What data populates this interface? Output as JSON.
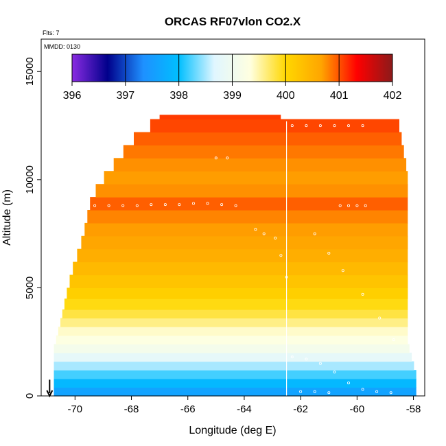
{
  "chart_data": {
    "type": "heatmap",
    "title": "ORCAS RF07vlon CO2.X",
    "xlabel": "Longitude (deg E)",
    "ylabel": "Altitude (m)",
    "xlim": [
      -71.2,
      -57.6
    ],
    "ylim": [
      0,
      16500
    ],
    "x_ticks": [
      -70,
      -68,
      -66,
      -64,
      -62,
      -60,
      -58
    ],
    "y_ticks": [
      0,
      5000,
      10000,
      15000
    ],
    "annotations": {
      "flights": "Flts: 7",
      "mmdd": "MMDD: 0130"
    },
    "colorbar": {
      "min": 396,
      "max": 402,
      "ticks": [
        396,
        397,
        398,
        399,
        400,
        401,
        402
      ],
      "colors": [
        "#8a2be2",
        "#00008b",
        "#1e90ff",
        "#00bfff",
        "#e0f6ff",
        "#ffffe0",
        "#ffd700",
        "#ffa500",
        "#ff0000",
        "#8b1a1a"
      ]
    },
    "envelope_left": [
      [
        -70.75,
        0
      ],
      [
        -70.75,
        2200
      ],
      [
        -70.5,
        3500
      ],
      [
        -70.3,
        4700
      ],
      [
        -70.1,
        5800
      ],
      [
        -69.8,
        7000
      ],
      [
        -69.6,
        8000
      ],
      [
        -69.5,
        8800
      ],
      [
        -69.2,
        9700
      ],
      [
        -68.8,
        10400
      ],
      [
        -68.4,
        11100
      ],
      [
        -68.0,
        11800
      ],
      [
        -67.5,
        12400
      ],
      [
        -67.0,
        12700
      ]
    ],
    "top_edge": [
      [
        -67.0,
        12700
      ],
      [
        -62.7,
        12700
      ],
      [
        -62.7,
        12500
      ],
      [
        -58.5,
        12500
      ]
    ],
    "envelope_right": [
      [
        -58.5,
        12500
      ],
      [
        -58.2,
        10300
      ],
      [
        -58.2,
        2500
      ],
      [
        -57.9,
        1000
      ],
      [
        -57.9,
        0
      ]
    ],
    "vertical_profile_a": {
      "lon": -70.9,
      "alt_top": 750,
      "alt_bottom": 0
    },
    "vertical_profile_b": {
      "lon": -62.5,
      "alt_top": 12700,
      "alt_bottom": 0
    },
    "layers": [
      {
        "alt": [
          0,
          400
        ],
        "co2": 397.6
      },
      {
        "alt": [
          400,
          800
        ],
        "co2": 397.9
      },
      {
        "alt": [
          800,
          1200
        ],
        "co2": 398.2
      },
      {
        "alt": [
          1200,
          1600
        ],
        "co2": 398.5
      },
      {
        "alt": [
          1600,
          2000
        ],
        "co2": 398.8
      },
      {
        "alt": [
          2000,
          2400
        ],
        "co2": 399.1
      },
      {
        "alt": [
          2400,
          2800
        ],
        "co2": 399.3
      },
      {
        "alt": [
          2800,
          3200
        ],
        "co2": 399.4
      },
      {
        "alt": [
          3200,
          3600
        ],
        "co2": 399.6
      },
      {
        "alt": [
          3600,
          4000
        ],
        "co2": 399.8
      },
      {
        "alt": [
          4000,
          4500
        ],
        "co2": 399.95
      },
      {
        "alt": [
          4500,
          5000
        ],
        "co2": 400.1
      },
      {
        "alt": [
          5000,
          5600
        ],
        "co2": 400.25
      },
      {
        "alt": [
          5600,
          6200
        ],
        "co2": 400.4
      },
      {
        "alt": [
          6200,
          6800
        ],
        "co2": 400.55
      },
      {
        "alt": [
          6800,
          7400
        ],
        "co2": 400.65
      },
      {
        "alt": [
          7400,
          8000
        ],
        "co2": 400.7
      },
      {
        "alt": [
          8000,
          8600
        ],
        "co2": 400.8
      },
      {
        "alt": [
          8600,
          9200
        ],
        "co2": 400.95
      },
      {
        "alt": [
          9200,
          9800
        ],
        "co2": 400.75
      },
      {
        "alt": [
          9800,
          10400
        ],
        "co2": 400.7
      },
      {
        "alt": [
          10400,
          11000
        ],
        "co2": 400.75
      },
      {
        "alt": [
          11000,
          11600
        ],
        "co2": 400.85
      },
      {
        "alt": [
          11600,
          12200
        ],
        "co2": 400.95
      },
      {
        "alt": [
          12200,
          12800
        ],
        "co2": 401.05
      },
      {
        "alt": [
          12800,
          13000
        ],
        "co2": 401.1
      }
    ],
    "flight_track_points": [
      [
        -69.3,
        8800
      ],
      [
        -68.8,
        8800
      ],
      [
        -68.3,
        8800
      ],
      [
        -67.8,
        8800
      ],
      [
        -67.3,
        8850
      ],
      [
        -66.8,
        8850
      ],
      [
        -66.3,
        8850
      ],
      [
        -65.8,
        8900
      ],
      [
        -65.3,
        8900
      ],
      [
        -64.8,
        8850
      ],
      [
        -64.3,
        8800
      ],
      [
        -63.6,
        7700
      ],
      [
        -63.3,
        7500
      ],
      [
        -62.9,
        7300
      ],
      [
        -62.7,
        6500
      ],
      [
        -62.5,
        5500
      ],
      [
        -62.3,
        12500
      ],
      [
        -61.8,
        12500
      ],
      [
        -61.3,
        12500
      ],
      [
        -60.8,
        12500
      ],
      [
        -60.3,
        12500
      ],
      [
        -59.8,
        12500
      ],
      [
        -60.6,
        8800
      ],
      [
        -60.3,
        8800
      ],
      [
        -60.0,
        8800
      ],
      [
        -59.7,
        8800
      ],
      [
        -64.6,
        11000
      ],
      [
        -65.0,
        11000
      ],
      [
        -61.5,
        7500
      ],
      [
        -61.0,
        6600
      ],
      [
        -60.5,
        5800
      ],
      [
        -59.8,
        4700
      ],
      [
        -59.2,
        3600
      ],
      [
        -58.7,
        2600
      ],
      [
        -62.3,
        1800
      ],
      [
        -61.8,
        1700
      ],
      [
        -61.3,
        1500
      ],
      [
        -60.8,
        1100
      ],
      [
        -60.3,
        600
      ],
      [
        -59.8,
        300
      ],
      [
        -59.3,
        200
      ],
      [
        -58.8,
        150
      ],
      [
        -62.0,
        200
      ],
      [
        -61.5,
        200
      ],
      [
        -61.0,
        150
      ]
    ]
  }
}
